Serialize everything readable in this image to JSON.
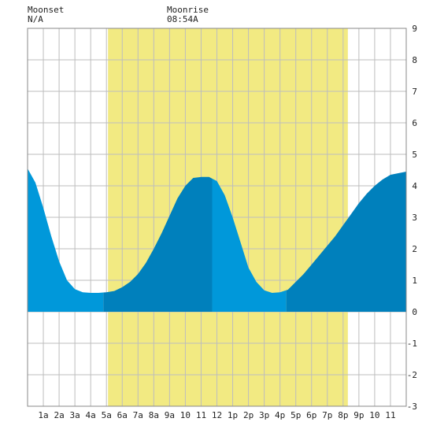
{
  "moonset": {
    "label": "Moonset",
    "time": "N/A"
  },
  "moonrise": {
    "label": "Moonrise",
    "time": "08:54A"
  },
  "colors": {
    "daylight": "#f2ea82",
    "water_light": "#0098da",
    "water_dark": "#0080bc",
    "grid": "#bdbdbd",
    "axis": "#888888"
  },
  "chart_data": {
    "type": "area",
    "x_tick_labels": [
      "1a",
      "2a",
      "3a",
      "4a",
      "5a",
      "6a",
      "7a",
      "8a",
      "9a",
      "10",
      "11",
      "12",
      "1p",
      "2p",
      "3p",
      "4p",
      "5p",
      "6p",
      "7p",
      "8p",
      "9p",
      "10",
      "11"
    ],
    "x_tick_hours": [
      1,
      2,
      3,
      4,
      5,
      6,
      7,
      8,
      9,
      10,
      11,
      12,
      13,
      14,
      15,
      16,
      17,
      18,
      19,
      20,
      21,
      22,
      23
    ],
    "xlim": [
      0,
      24
    ],
    "ylim": [
      -3,
      9
    ],
    "y_ticks": [
      -3,
      -2,
      -1,
      0,
      1,
      2,
      3,
      4,
      5,
      6,
      7,
      8,
      9
    ],
    "grid": true,
    "daylight_hours": [
      5.1,
      20.3
    ],
    "shade_boundaries_hours": [
      4.8,
      11.7,
      16.4
    ],
    "tide_points": [
      [
        0.0,
        4.55
      ],
      [
        0.5,
        4.1
      ],
      [
        1.0,
        3.3
      ],
      [
        1.5,
        2.4
      ],
      [
        2.0,
        1.6
      ],
      [
        2.5,
        1.0
      ],
      [
        3.0,
        0.72
      ],
      [
        3.5,
        0.62
      ],
      [
        4.0,
        0.6
      ],
      [
        4.5,
        0.6
      ],
      [
        5.0,
        0.62
      ],
      [
        5.5,
        0.66
      ],
      [
        6.0,
        0.78
      ],
      [
        6.5,
        0.95
      ],
      [
        7.0,
        1.2
      ],
      [
        7.5,
        1.55
      ],
      [
        8.0,
        2.0
      ],
      [
        8.5,
        2.5
      ],
      [
        9.0,
        3.05
      ],
      [
        9.5,
        3.6
      ],
      [
        10.0,
        4.0
      ],
      [
        10.5,
        4.25
      ],
      [
        11.0,
        4.28
      ],
      [
        11.5,
        4.28
      ],
      [
        12.0,
        4.15
      ],
      [
        12.5,
        3.7
      ],
      [
        13.0,
        3.0
      ],
      [
        13.5,
        2.2
      ],
      [
        14.0,
        1.4
      ],
      [
        14.5,
        0.95
      ],
      [
        15.0,
        0.68
      ],
      [
        15.5,
        0.6
      ],
      [
        16.0,
        0.62
      ],
      [
        16.5,
        0.7
      ],
      [
        17.0,
        0.95
      ],
      [
        17.5,
        1.2
      ],
      [
        18.0,
        1.5
      ],
      [
        18.5,
        1.8
      ],
      [
        19.0,
        2.1
      ],
      [
        19.5,
        2.4
      ],
      [
        20.0,
        2.75
      ],
      [
        20.5,
        3.1
      ],
      [
        21.0,
        3.45
      ],
      [
        21.5,
        3.75
      ],
      [
        22.0,
        4.0
      ],
      [
        22.5,
        4.2
      ],
      [
        23.0,
        4.35
      ],
      [
        23.5,
        4.4
      ],
      [
        24.0,
        4.45
      ]
    ]
  }
}
